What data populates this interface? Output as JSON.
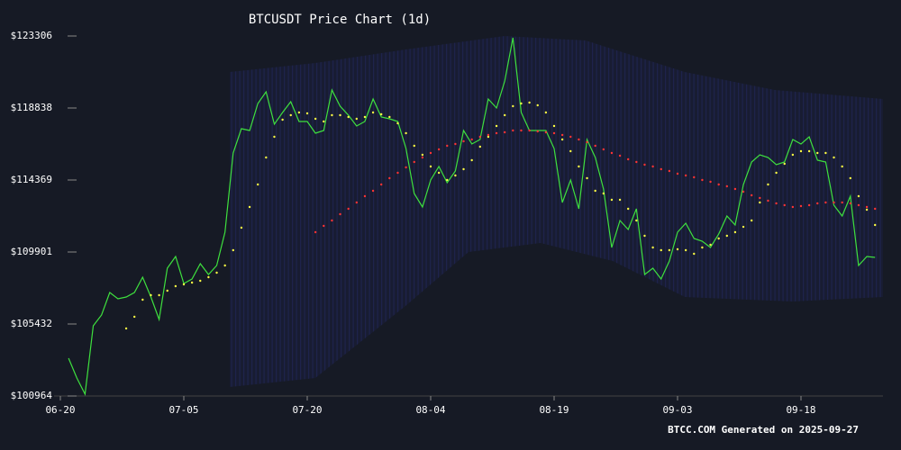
{
  "chart_data": {
    "type": "line",
    "title": "BTCUSDT Price Chart (1d)",
    "footer": "BTCC.COM Generated on 2025-09-27",
    "categories": [
      "06-20",
      null,
      null,
      null,
      null,
      null,
      null,
      null,
      null,
      null,
      null,
      null,
      null,
      null,
      null,
      "07-05",
      null,
      null,
      null,
      null,
      null,
      null,
      null,
      null,
      null,
      null,
      null,
      null,
      null,
      null,
      "07-20",
      null,
      null,
      null,
      null,
      null,
      null,
      null,
      null,
      null,
      null,
      null,
      null,
      null,
      null,
      "08-04",
      null,
      null,
      null,
      null,
      null,
      null,
      null,
      null,
      null,
      null,
      null,
      null,
      null,
      null,
      "08-19",
      null,
      null,
      null,
      null,
      null,
      null,
      null,
      null,
      null,
      null,
      null,
      null,
      null,
      null,
      "09-03",
      null,
      null,
      null,
      null,
      null,
      null,
      null,
      null,
      null,
      null,
      null,
      null,
      null,
      null,
      "09-18",
      null,
      null,
      null,
      null,
      null,
      null,
      null,
      null,
      null
    ],
    "ylim": [
      100964,
      123306
    ],
    "yticks": [
      {
        "value": 123306,
        "label": "$123306"
      },
      {
        "value": 118838,
        "label": "$118838"
      },
      {
        "value": 114369,
        "label": "$114369"
      },
      {
        "value": 109901,
        "label": "$109901"
      },
      {
        "value": 105432,
        "label": "$105432"
      },
      {
        "value": 100964,
        "label": "$100964"
      }
    ],
    "series": [
      {
        "color": "#3ee03e",
        "style": "line",
        "values": [
          null,
          103310,
          102081,
          101076,
          105321,
          105991,
          107387,
          106996,
          107108,
          107387,
          108337,
          107108,
          105712,
          108895,
          109622,
          107946,
          108225,
          109175,
          108504,
          109063,
          111129,
          116045,
          117553,
          117441,
          119117,
          119843,
          117832,
          118559,
          119229,
          118000,
          118000,
          117274,
          117441,
          119955,
          118949,
          118391,
          117720,
          118000,
          119396,
          118279,
          118167,
          118000,
          116324,
          113531,
          112694,
          114369,
          115207,
          114202,
          114928,
          117441,
          116603,
          116883,
          119396,
          118838,
          120513,
          123194,
          118559,
          117441,
          117441,
          117441,
          116324,
          112973,
          114369,
          112582,
          116883,
          115766,
          113811,
          110180,
          111856,
          111297,
          112582,
          108504,
          108895,
          108225,
          109342,
          111129,
          111688,
          110739,
          110571,
          110180,
          111018,
          112135,
          111576,
          114090,
          115486,
          115933,
          115766,
          115319,
          115486,
          116883,
          116603,
          117050,
          115598,
          115486,
          112805,
          112135,
          113364,
          109063,
          109622,
          109566
        ]
      },
      {
        "color": "#ffff44",
        "style": "dots",
        "values": [
          null,
          null,
          null,
          null,
          null,
          null,
          null,
          null,
          105154,
          105880,
          106941,
          107220,
          107220,
          107499,
          107778,
          107890,
          108002,
          108113,
          108337,
          108616,
          109063,
          110012,
          111409,
          112694,
          114090,
          115766,
          117050,
          118111,
          118391,
          118559,
          118503,
          118167,
          118000,
          118391,
          118391,
          118279,
          118167,
          118279,
          118559,
          118447,
          118279,
          117888,
          117274,
          116492,
          115933,
          115207,
          114816,
          114369,
          114648,
          115040,
          115598,
          116436,
          117050,
          117720,
          118391,
          118949,
          119117,
          119173,
          119005,
          118559,
          117720,
          116883,
          116157,
          115207,
          114481,
          113699,
          113531,
          113140,
          113140,
          112582,
          111856,
          110906,
          110180,
          110012,
          110012,
          110068,
          110012,
          109789,
          110180,
          110348,
          110739,
          110906,
          111129,
          111464,
          111856,
          112973,
          114090,
          114816,
          115374,
          115933,
          116157,
          116157,
          116045,
          116045,
          115766,
          115207,
          114481,
          113364,
          112526,
          111576
        ]
      },
      {
        "color": "#ff3333",
        "style": "dots",
        "values": [
          null,
          null,
          null,
          null,
          null,
          null,
          null,
          null,
          null,
          null,
          null,
          null,
          null,
          null,
          null,
          null,
          null,
          null,
          null,
          null,
          null,
          null,
          null,
          null,
          null,
          null,
          null,
          null,
          null,
          null,
          null,
          111129,
          111521,
          111856,
          112247,
          112582,
          112973,
          113364,
          113699,
          114090,
          114481,
          114816,
          115151,
          115486,
          115766,
          116045,
          116268,
          116492,
          116603,
          116771,
          116883,
          117050,
          117162,
          117274,
          117329,
          117441,
          117441,
          117441,
          117385,
          117329,
          117274,
          117162,
          117050,
          116883,
          116715,
          116492,
          116268,
          116045,
          115877,
          115654,
          115486,
          115319,
          115207,
          115040,
          114928,
          114760,
          114648,
          114537,
          114369,
          114257,
          114090,
          113978,
          113811,
          113643,
          113420,
          113252,
          113085,
          112917,
          112805,
          112694,
          112750,
          112805,
          112917,
          112973,
          112973,
          112973,
          112917,
          112805,
          112694,
          112582
        ]
      }
    ]
  }
}
